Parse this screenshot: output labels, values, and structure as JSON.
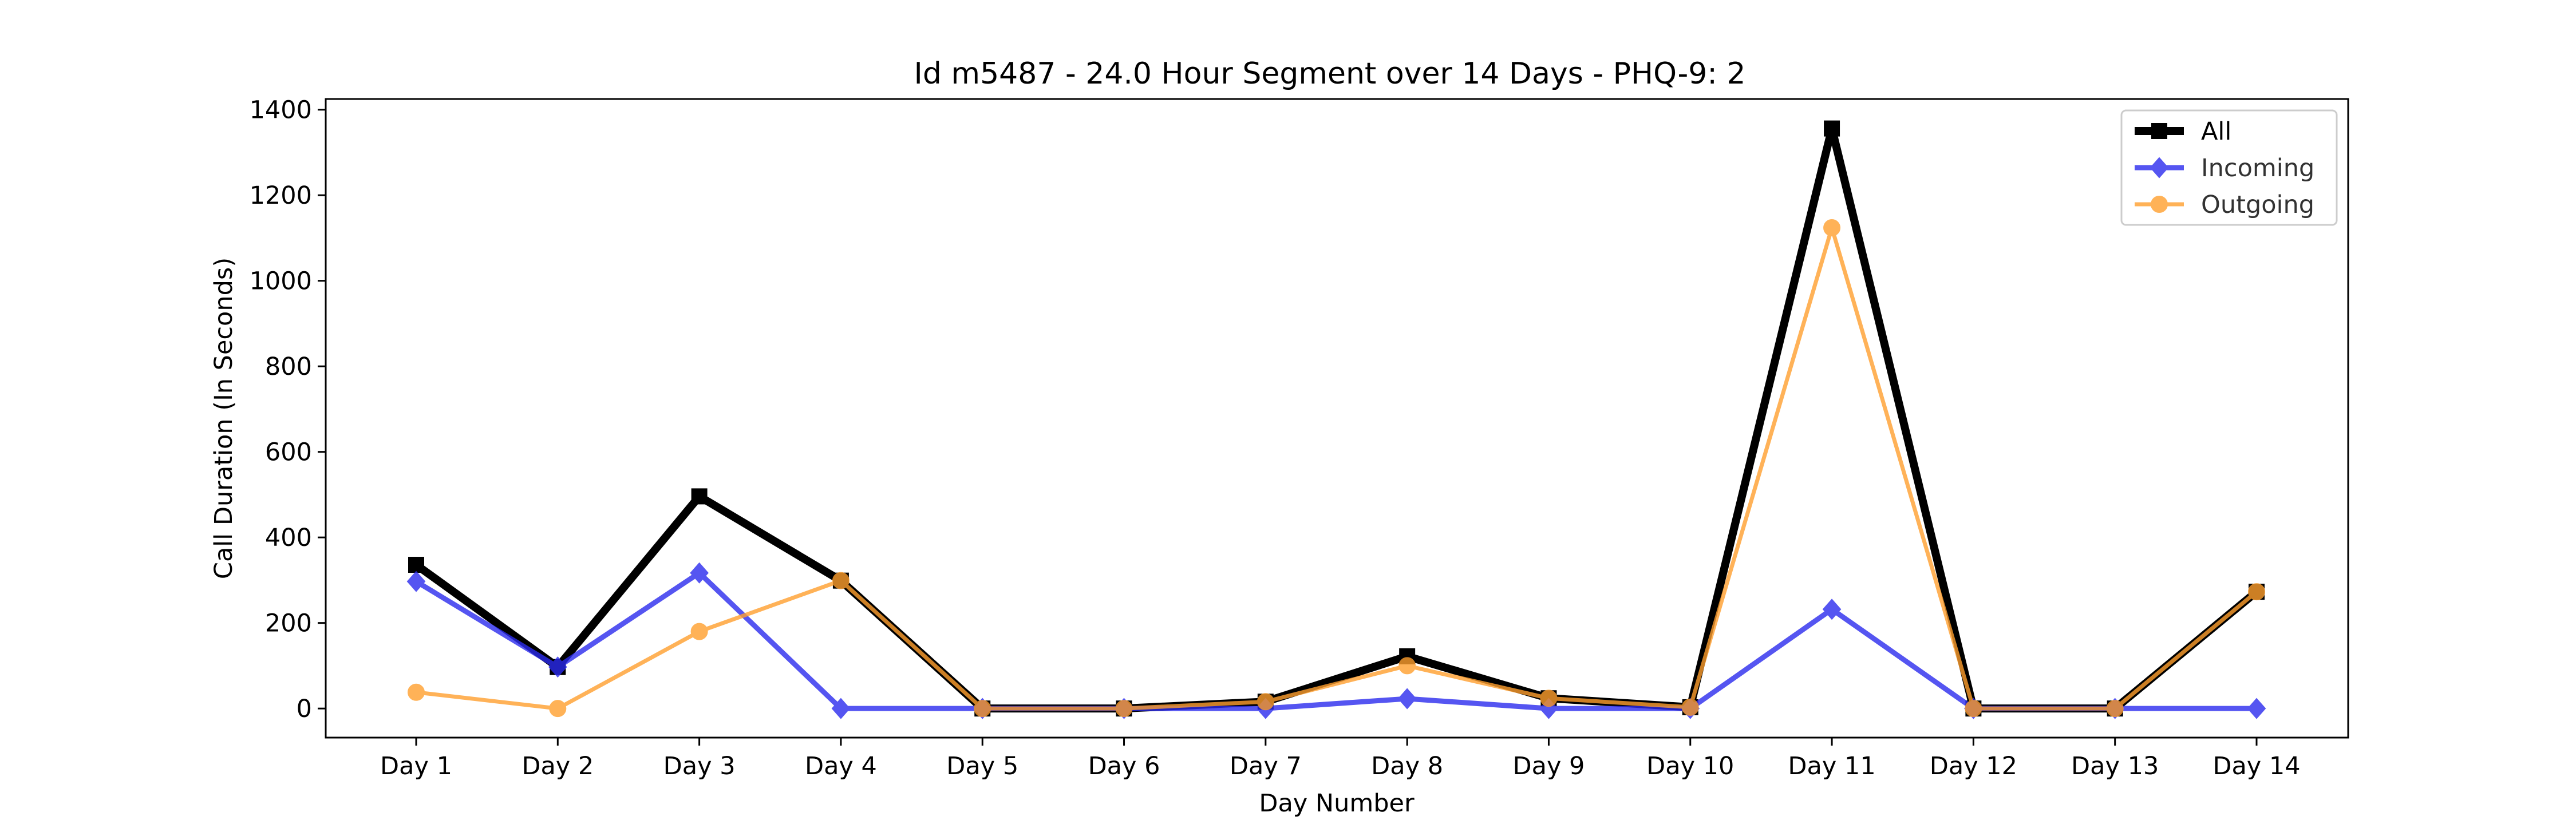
{
  "chart_data": {
    "type": "line",
    "title": "Id m5487 - 24.0 Hour Segment over 14 Days - PHQ-9: 2",
    "xlabel": "Day Number",
    "ylabel": "Call Duration (In Seconds)",
    "categories": [
      "Day 1",
      "Day 2",
      "Day 3",
      "Day 4",
      "Day 5",
      "Day 6",
      "Day 7",
      "Day 8",
      "Day 9",
      "Day 10",
      "Day 11",
      "Day 12",
      "Day 13",
      "Day 14"
    ],
    "ylim": [
      -68,
      1425
    ],
    "yticks": [
      0,
      200,
      400,
      600,
      800,
      1000,
      1200,
      1400
    ],
    "grid": false,
    "legend_position": "top-right",
    "series": [
      {
        "name": "All",
        "color": "#000000",
        "marker": "square",
        "values": [
          336,
          97,
          496,
          299,
          0,
          0,
          16,
          122,
          24,
          3,
          1356,
          0,
          0,
          273
        ]
      },
      {
        "name": "Incoming",
        "color": "#2b2bee",
        "marker": "diamond",
        "values": [
          297,
          97,
          317,
          0,
          0,
          0,
          0,
          23,
          0,
          0,
          232,
          0,
          0,
          0
        ]
      },
      {
        "name": "Outgoing",
        "color": "#ff9f2e",
        "marker": "circle",
        "values": [
          38,
          0,
          180,
          299,
          0,
          0,
          16,
          100,
          24,
          3,
          1124,
          0,
          0,
          273
        ]
      }
    ]
  }
}
